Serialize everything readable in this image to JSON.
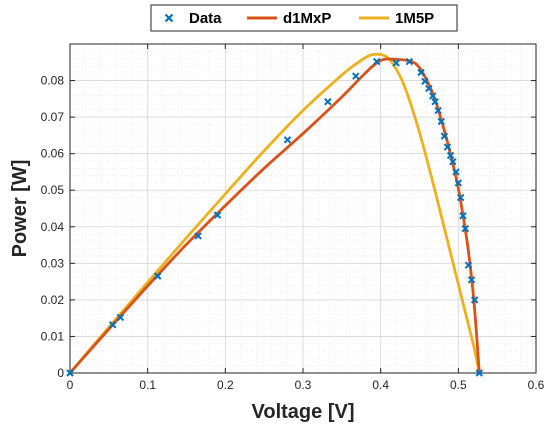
{
  "chart_data": {
    "type": "line",
    "title": "",
    "xlabel": "Voltage [V]",
    "ylabel": "Power [W]",
    "xlim": [
      0,
      0.6
    ],
    "ylim": [
      0,
      0.09
    ],
    "xticks": [
      0,
      0.1,
      0.2,
      0.3,
      0.4,
      0.5,
      0.6
    ],
    "xtick_labels": [
      "0",
      "0.1",
      "0.2",
      "0.3",
      "0.4",
      "0.5",
      "0.6"
    ],
    "yticks": [
      0,
      0.01,
      0.02,
      0.03,
      0.04,
      0.05,
      0.06,
      0.07,
      0.08
    ],
    "ytick_labels": [
      "0",
      "0.01",
      "0.02",
      "0.03",
      "0.04",
      "0.05",
      "0.06",
      "0.07",
      "0.08"
    ],
    "grid": true,
    "legend_position": "top",
    "series": [
      {
        "name": "Data",
        "kind": "marker",
        "color": "#0072BD",
        "x": [
          0,
          0.055,
          0.065,
          0.113,
          0.165,
          0.19,
          0.28,
          0.332,
          0.368,
          0.395,
          0.42,
          0.437,
          0.452,
          0.457,
          0.462,
          0.467,
          0.47,
          0.474,
          0.478,
          0.482,
          0.486,
          0.49,
          0.493,
          0.497,
          0.5,
          0.503,
          0.506,
          0.509,
          0.513,
          0.517,
          0.521,
          0.527
        ],
        "y": [
          0,
          0.0132,
          0.0152,
          0.0265,
          0.0375,
          0.0432,
          0.0638,
          0.0742,
          0.0812,
          0.0852,
          0.0848,
          0.0852,
          0.0822,
          0.0798,
          0.0778,
          0.0758,
          0.0742,
          0.0718,
          0.0688,
          0.0648,
          0.0618,
          0.0595,
          0.0578,
          0.055,
          0.052,
          0.048,
          0.043,
          0.0395,
          0.0295,
          0.0255,
          0.02,
          0.0
        ]
      },
      {
        "name": "d1MxP",
        "kind": "line",
        "color": "#D95319",
        "x": [
          0,
          0.05,
          0.1,
          0.15,
          0.2,
          0.25,
          0.3,
          0.35,
          0.38,
          0.4,
          0.42,
          0.44,
          0.45,
          0.46,
          0.47,
          0.48,
          0.49,
          0.5,
          0.51,
          0.515,
          0.52,
          0.524,
          0.527
        ],
        "y": [
          0,
          0.012,
          0.0238,
          0.0352,
          0.0458,
          0.056,
          0.0655,
          0.0755,
          0.082,
          0.0855,
          0.0858,
          0.0852,
          0.0835,
          0.0798,
          0.0748,
          0.0678,
          0.0598,
          0.0505,
          0.0378,
          0.0298,
          0.0198,
          0.009,
          0.0
        ]
      },
      {
        "name": "1M5P",
        "kind": "line",
        "color": "#EDB120",
        "x": [
          0,
          0.05,
          0.1,
          0.15,
          0.2,
          0.25,
          0.3,
          0.35,
          0.37,
          0.385,
          0.395,
          0.405,
          0.415,
          0.43,
          0.45,
          0.47,
          0.49,
          0.51,
          0.52,
          0.527
        ],
        "y": [
          0,
          0.0125,
          0.0248,
          0.037,
          0.049,
          0.0608,
          0.0718,
          0.0815,
          0.0848,
          0.0868,
          0.0872,
          0.0868,
          0.0848,
          0.0788,
          0.0658,
          0.0498,
          0.0328,
          0.0158,
          0.0072,
          0.0
        ]
      }
    ]
  }
}
